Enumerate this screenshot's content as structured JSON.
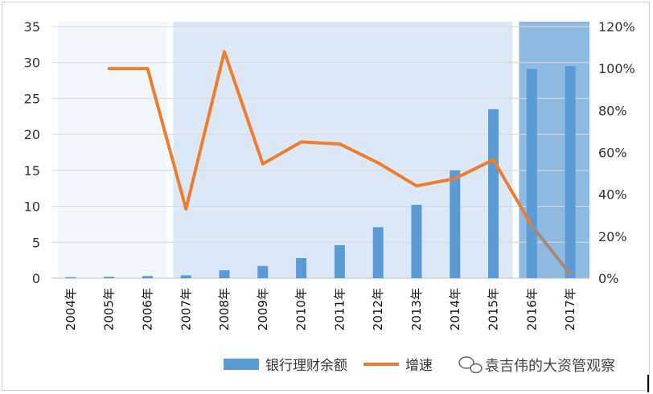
{
  "chart_data": {
    "type": "bar",
    "categories": [
      "2004年",
      "2005年",
      "2006年",
      "2007年",
      "2008年",
      "2009年",
      "2010年",
      "2011年",
      "2012年",
      "2013年",
      "2014年",
      "2015年",
      "2016年",
      "2017年"
    ],
    "series": [
      {
        "name": "银行理财余额",
        "type": "bar",
        "axis": "left",
        "color": "#5b9bd5",
        "values": [
          0.15,
          0.2,
          0.3,
          0.4,
          1.1,
          1.7,
          2.8,
          4.6,
          7.1,
          10.2,
          15.0,
          23.5,
          29.1,
          29.5
        ]
      },
      {
        "name": "增速",
        "type": "line",
        "axis": "right",
        "color": "#ed7d31",
        "values": [
          null,
          100,
          100,
          33,
          108,
          54.5,
          65,
          64,
          55,
          44,
          47.5,
          56.5,
          25,
          2
        ]
      }
    ],
    "y_left": {
      "min": 0,
      "max": 35,
      "ticks": [
        0,
        5,
        10,
        15,
        20,
        25,
        30,
        35
      ]
    },
    "y_right": {
      "min": 0,
      "max": 120,
      "ticks": [
        "0%",
        "20%",
        "40%",
        "60%",
        "80%",
        "100%",
        "120%"
      ]
    },
    "grid": true,
    "legend": "bottom-right",
    "shaded_regions": [
      {
        "from": "2004年",
        "to": "2006年",
        "color": "#f3f7fc"
      },
      {
        "from": "2007年",
        "to": "2015年",
        "color": "#dce8f5"
      },
      {
        "from": "2016年",
        "to": "2017年",
        "color": "#7aaedd"
      }
    ]
  },
  "watermark": {
    "text": "袁吉伟的大资管观察",
    "icon": "wechat-icon"
  }
}
